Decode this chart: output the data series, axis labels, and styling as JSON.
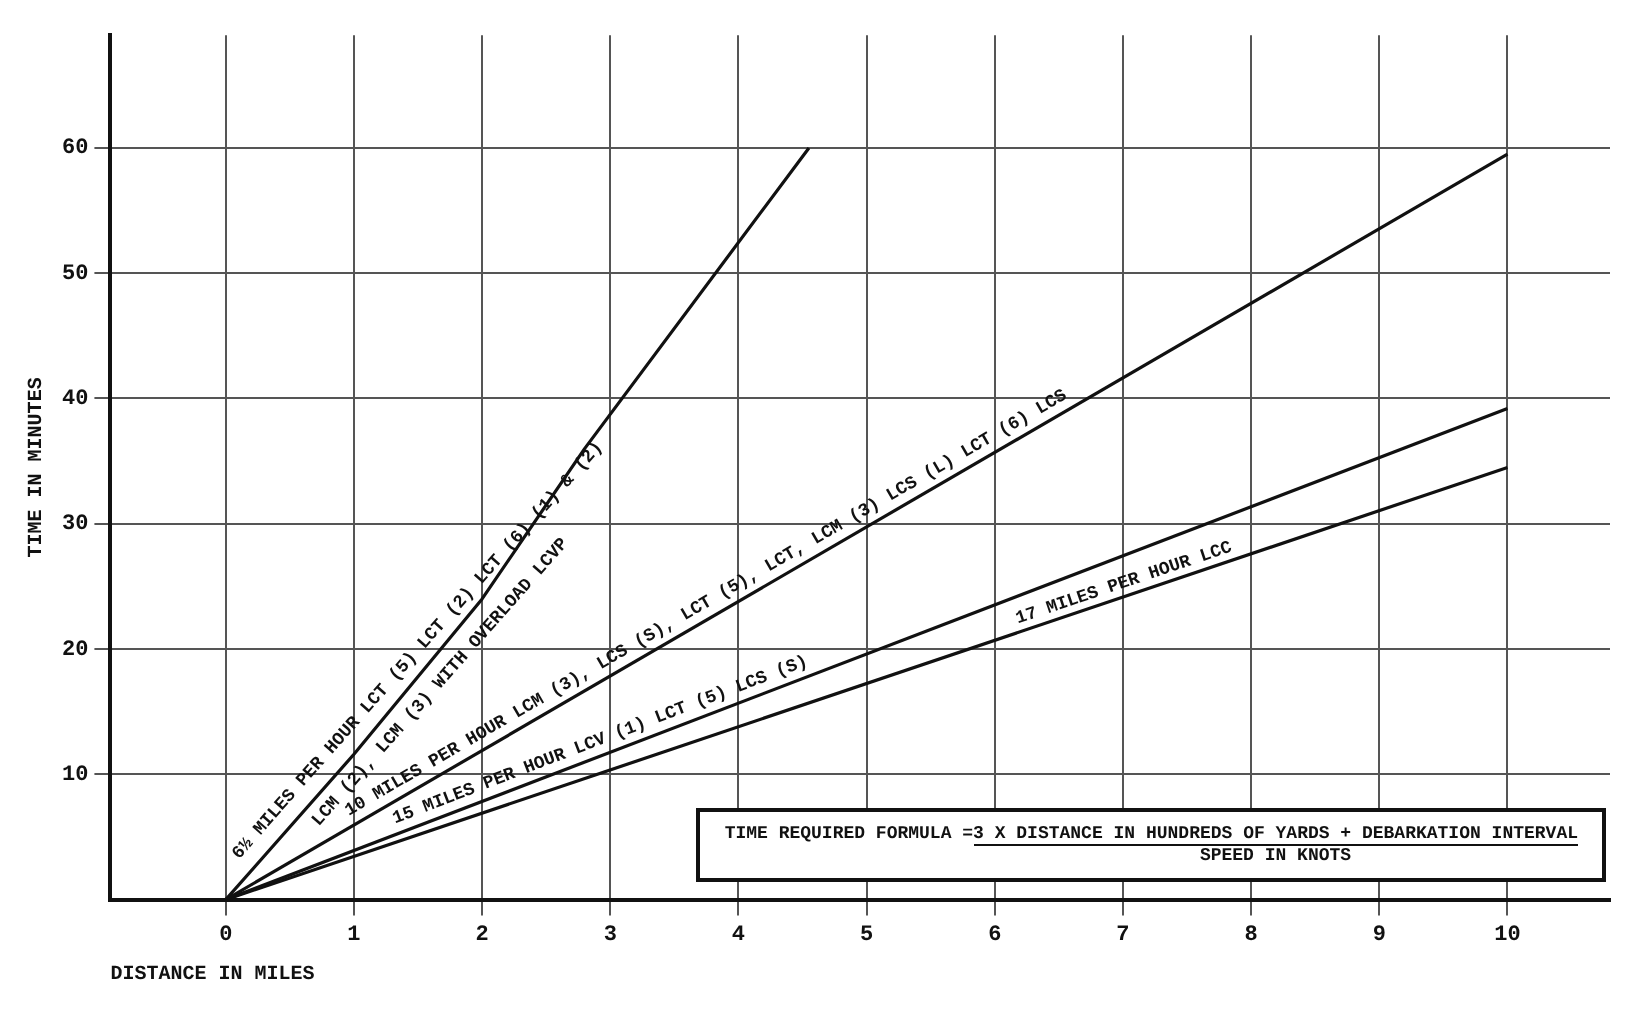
{
  "chart_data": {
    "type": "line",
    "xlabel": "DISTANCE IN MILES",
    "ylabel": "TIME IN MINUTES",
    "series": [
      {
        "name": "6½ MILES PER HOUR LCT (5) LCT (2) LCT (6) (1) & (2)",
        "color": "#111111",
        "x": [
          0,
          1,
          2,
          2.8,
          4.55
        ],
        "values": [
          0,
          11.6,
          24,
          36,
          60
        ]
      },
      {
        "name": "10 MILES PER HOUR LCM (3), LCS (S), LCT (5), LCT, LCM (3) LCS (L) LCT (6) LCS",
        "color": "#111111",
        "x": [
          0,
          10
        ],
        "values": [
          0,
          59.5
        ]
      },
      {
        "name": "15 MILES PER HOUR LCV (1) LCT (5) LCS (S)",
        "color": "#111111",
        "x": [
          0,
          10
        ],
        "values": [
          0,
          39.2
        ]
      },
      {
        "name": "17 MILES PER HOUR LCC",
        "color": "#111111",
        "x": [
          0,
          10
        ],
        "values": [
          0,
          34.5
        ]
      }
    ],
    "annotations": [
      "LCM (2), LCM (3) WITH OVERLOAD LCVP",
      "TIME REQUIRED FORMULA = ",
      "3 X DISTANCE IN HUNDREDS OF YARDS + DEBARKATION INTERVAL",
      "SPEED IN KNOTS"
    ],
    "xlim": [
      -0.9,
      10.8
    ],
    "xticks": [
      0,
      1,
      2,
      3,
      4,
      5,
      6,
      7,
      8,
      9,
      10
    ],
    "ylim": [
      0,
      69
    ],
    "yticks": [
      10,
      20,
      30,
      40,
      50,
      60
    ],
    "grid": true,
    "legend": false,
    "marker": "none",
    "line_style": "solid"
  }
}
